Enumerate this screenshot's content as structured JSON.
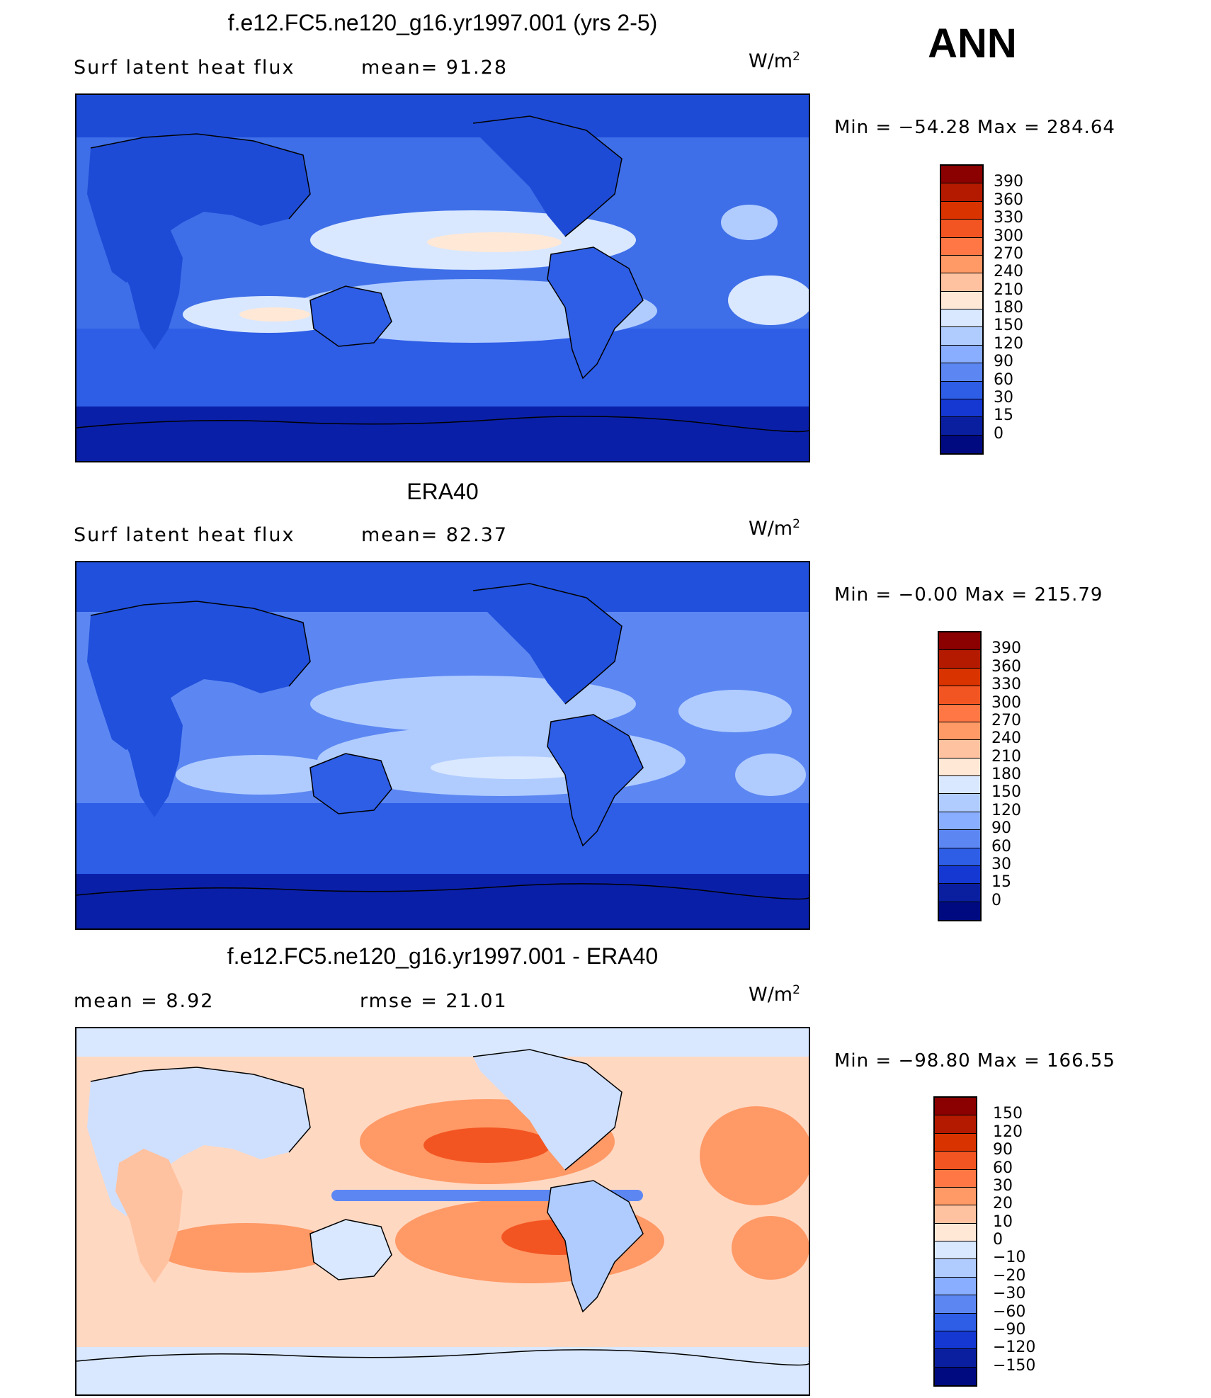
{
  "season": "ANN",
  "panels": [
    {
      "id": "model",
      "title": "f.e12.FC5.ne120_g16.yr1997.001 (yrs 2-5)",
      "left_label": "Surf  latent  heat  flux",
      "mid_label": "mean=   91.28",
      "units_base": "W/m",
      "units_exp": "2",
      "minmax": "Min  =  −54.28  Max  =  284.64",
      "ocean_color": "#3f6fe8",
      "land_color": "#1e4bd6",
      "polar_color": "#0a1fa8",
      "levels": [
        "390",
        "360",
        "330",
        "300",
        "270",
        "240",
        "210",
        "180",
        "150",
        "120",
        "90",
        "60",
        "30",
        "15",
        "0"
      ],
      "colors": [
        "#8b0000",
        "#b31a00",
        "#d93300",
        "#f25522",
        "#ff7744",
        "#ff9966",
        "#ffc2a0",
        "#ffe8d6",
        "#d9e8ff",
        "#b0ccff",
        "#8aaeff",
        "#5c87f2",
        "#2e5de6",
        "#1438d1",
        "#0a1fa0",
        "#000a80"
      ]
    },
    {
      "id": "obs",
      "title": "ERA40",
      "left_label": "Surf  latent  heat  flux",
      "mid_label": "mean=   82.37",
      "units_base": "W/m",
      "units_exp": "2",
      "minmax": "Min  =    −0.00  Max  =  215.79",
      "ocean_color": "#5c87f2",
      "land_color": "#2050dc",
      "polar_color": "#0a1fa8",
      "levels": [
        "390",
        "360",
        "330",
        "300",
        "270",
        "240",
        "210",
        "180",
        "150",
        "120",
        "90",
        "60",
        "30",
        "15",
        "0"
      ],
      "colors": [
        "#8b0000",
        "#b31a00",
        "#d93300",
        "#f25522",
        "#ff7744",
        "#ff9966",
        "#ffc2a0",
        "#ffe8d6",
        "#d9e8ff",
        "#b0ccff",
        "#8aaeff",
        "#5c87f2",
        "#2e5de6",
        "#1438d1",
        "#0a1fa0",
        "#000a80"
      ]
    },
    {
      "id": "diff",
      "title": "f.e12.FC5.ne120_g16.yr1997.001 - ERA40",
      "left_label": "mean  =      8.92",
      "mid_label": "rmse  =    21.01",
      "units_base": "W/m",
      "units_exp": "2",
      "minmax": "Min  =  −98.80  Max  =  166.55",
      "ocean_color": "#ffd8c2",
      "land_color": "#cfe0ff",
      "polar_color": "#d9e8ff",
      "levels": [
        "150",
        "120",
        "90",
        "60",
        "30",
        "20",
        "10",
        "0",
        "−10",
        "−20",
        "−30",
        "−60",
        "−90",
        "−120",
        "−150"
      ],
      "colors": [
        "#8b0000",
        "#b31a00",
        "#d93300",
        "#f25522",
        "#ff7744",
        "#ff9966",
        "#ffc2a0",
        "#ffe8d6",
        "#d9e8ff",
        "#b0ccff",
        "#8aaeff",
        "#5c87f2",
        "#2e5de6",
        "#1438d1",
        "#0a1fa0",
        "#000a80"
      ]
    }
  ]
}
